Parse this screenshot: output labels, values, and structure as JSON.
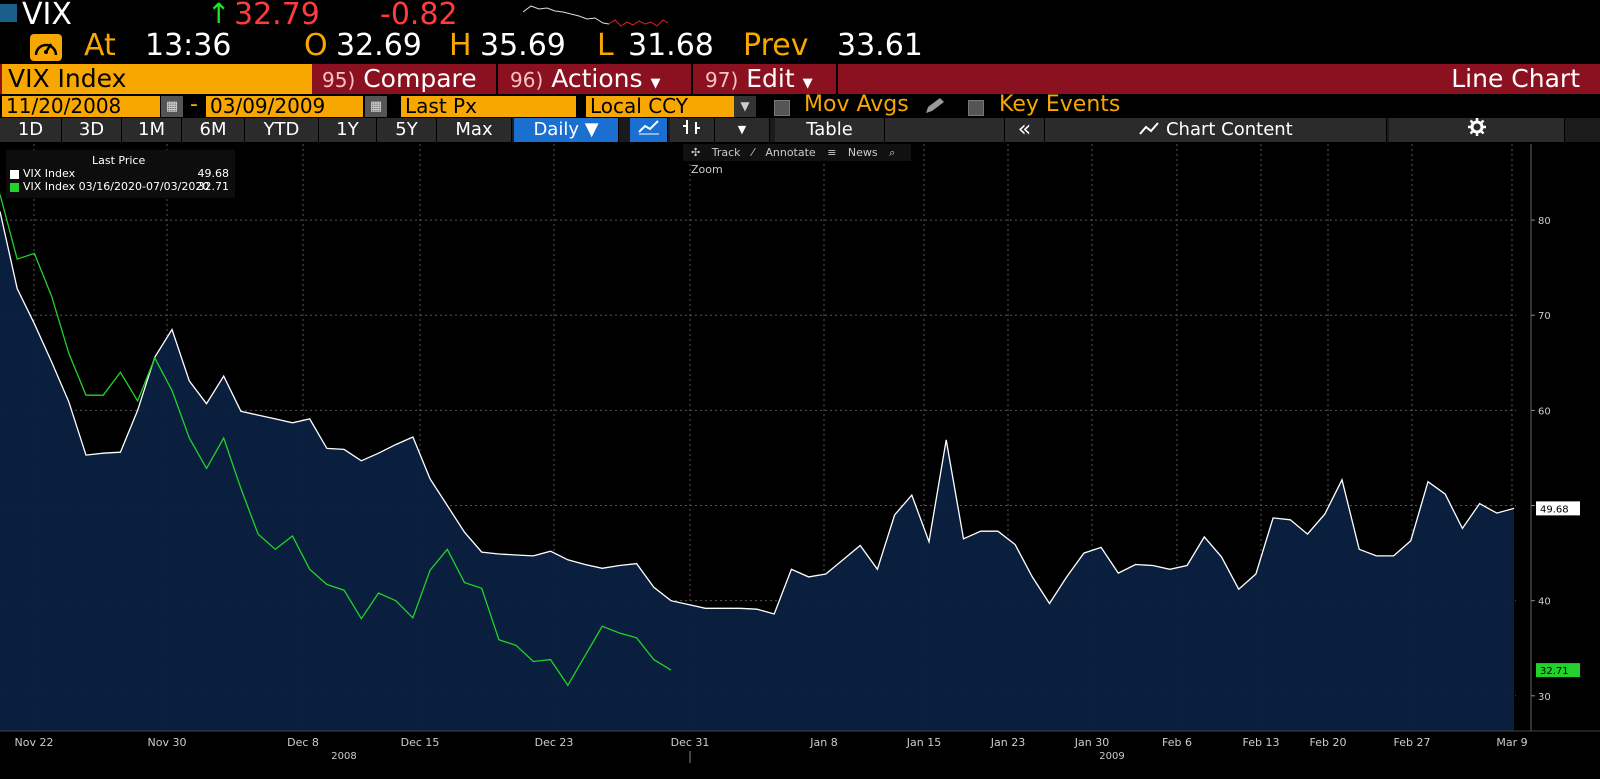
{
  "header": {
    "ticker": "VIX",
    "up_arrow": "↑",
    "last": "32.79",
    "change": "-0.82",
    "at_label": "At",
    "time": "13:36",
    "open_label": "O",
    "open": "32.69",
    "high_label": "H",
    "high": "35.69",
    "low_label": "L",
    "low": "31.68",
    "prev_label": "Prev",
    "prev": "33.61",
    "gauge_icon": "speedometer-icon"
  },
  "menubar": {
    "security": "VIX Index",
    "compare_num": "95)",
    "compare": "Compare",
    "actions_num": "96)",
    "actions": "Actions",
    "edit_num": "97)",
    "edit": "Edit",
    "chart_type": "Line Chart"
  },
  "params": {
    "start_date": "11/20/2008",
    "dash": "-",
    "end_date": "03/09/2009",
    "field": "Last Px",
    "currency": "Local CCY",
    "mov_avgs": "Mov Avgs",
    "key_events": "Key Events"
  },
  "toolbar": {
    "periods": [
      "1D",
      "3D",
      "1M",
      "6M",
      "YTD",
      "1Y",
      "5Y",
      "Max"
    ],
    "frequency": "Daily ▼",
    "table": "Table",
    "collapse": "«",
    "chart_content": "Chart Content"
  },
  "subtools": {
    "track": "Track",
    "annotate": "Annotate",
    "news": "News",
    "zoom": "Zoom"
  },
  "colors": {
    "accent": "#f7a700",
    "menubar": "#8b1020",
    "series1": "#ffffff",
    "series2": "#22d22a",
    "area": "#0b2040"
  },
  "chart_data": {
    "type": "line",
    "legend_title": "Last Price",
    "x_tick_labels": [
      "Nov 22",
      "Nov 30",
      "Dec 8",
      "Dec 15",
      "Dec 23",
      "Dec 31",
      "Jan 8",
      "Jan 15",
      "Jan 23",
      "Jan 30",
      "Feb 6",
      "Feb 13",
      "Feb 20",
      "Feb 27",
      "Mar 9"
    ],
    "x_year_labels": [
      "2008",
      "2009"
    ],
    "y_ticks": [
      30,
      40,
      50,
      60,
      70,
      80
    ],
    "ylim": [
      26.3,
      88
    ],
    "grid": true,
    "legend_position": "top-left",
    "series": [
      {
        "name": "VIX Index",
        "last_value": "49.68",
        "values": [
          80.9,
          72.8,
          69.1,
          65.1,
          60.9,
          55.3,
          55.5,
          55.6,
          60.0,
          65.6,
          68.5,
          63.1,
          60.7,
          63.6,
          59.9,
          59.5,
          59.1,
          58.7,
          59.1,
          56.0,
          55.9,
          54.7,
          55.5,
          56.4,
          57.2,
          52.8,
          50.0,
          47.2,
          45.1,
          44.9,
          44.8,
          44.7,
          45.2,
          44.3,
          43.8,
          43.4,
          43.7,
          43.9,
          41.4,
          40.0,
          39.6,
          39.2,
          39.2,
          39.2,
          39.1,
          38.6,
          43.3,
          42.5,
          42.8,
          44.3,
          45.8,
          43.3,
          49.0,
          51.1,
          46.2,
          56.9,
          46.5,
          47.3,
          47.3,
          45.9,
          42.5,
          39.7,
          42.5,
          45.0,
          45.6,
          42.9,
          43.8,
          43.7,
          43.3,
          43.7,
          46.7,
          44.6,
          41.2,
          42.8,
          48.7,
          48.5,
          47.0,
          49.1,
          52.7,
          45.4,
          44.7,
          44.7,
          46.3,
          52.5,
          51.2,
          47.6,
          50.2,
          49.2,
          49.7
        ]
      },
      {
        "name": "VIX Index 03/16/2020-07/03/2020",
        "last_value": "32.71",
        "values": [
          82.7,
          75.9,
          76.5,
          72.0,
          66.0,
          61.6,
          61.6,
          64.0,
          61.0,
          65.5,
          62.1,
          57.1,
          53.9,
          57.1,
          51.8,
          47.0,
          45.4,
          46.8,
          43.3,
          41.7,
          41.1,
          38.1,
          40.8,
          40.0,
          38.2,
          43.2,
          45.4,
          41.9,
          41.3,
          35.9,
          35.3,
          33.6,
          33.8,
          31.1,
          34.2,
          37.3,
          36.6,
          36.1,
          33.8,
          32.7
        ]
      }
    ]
  }
}
